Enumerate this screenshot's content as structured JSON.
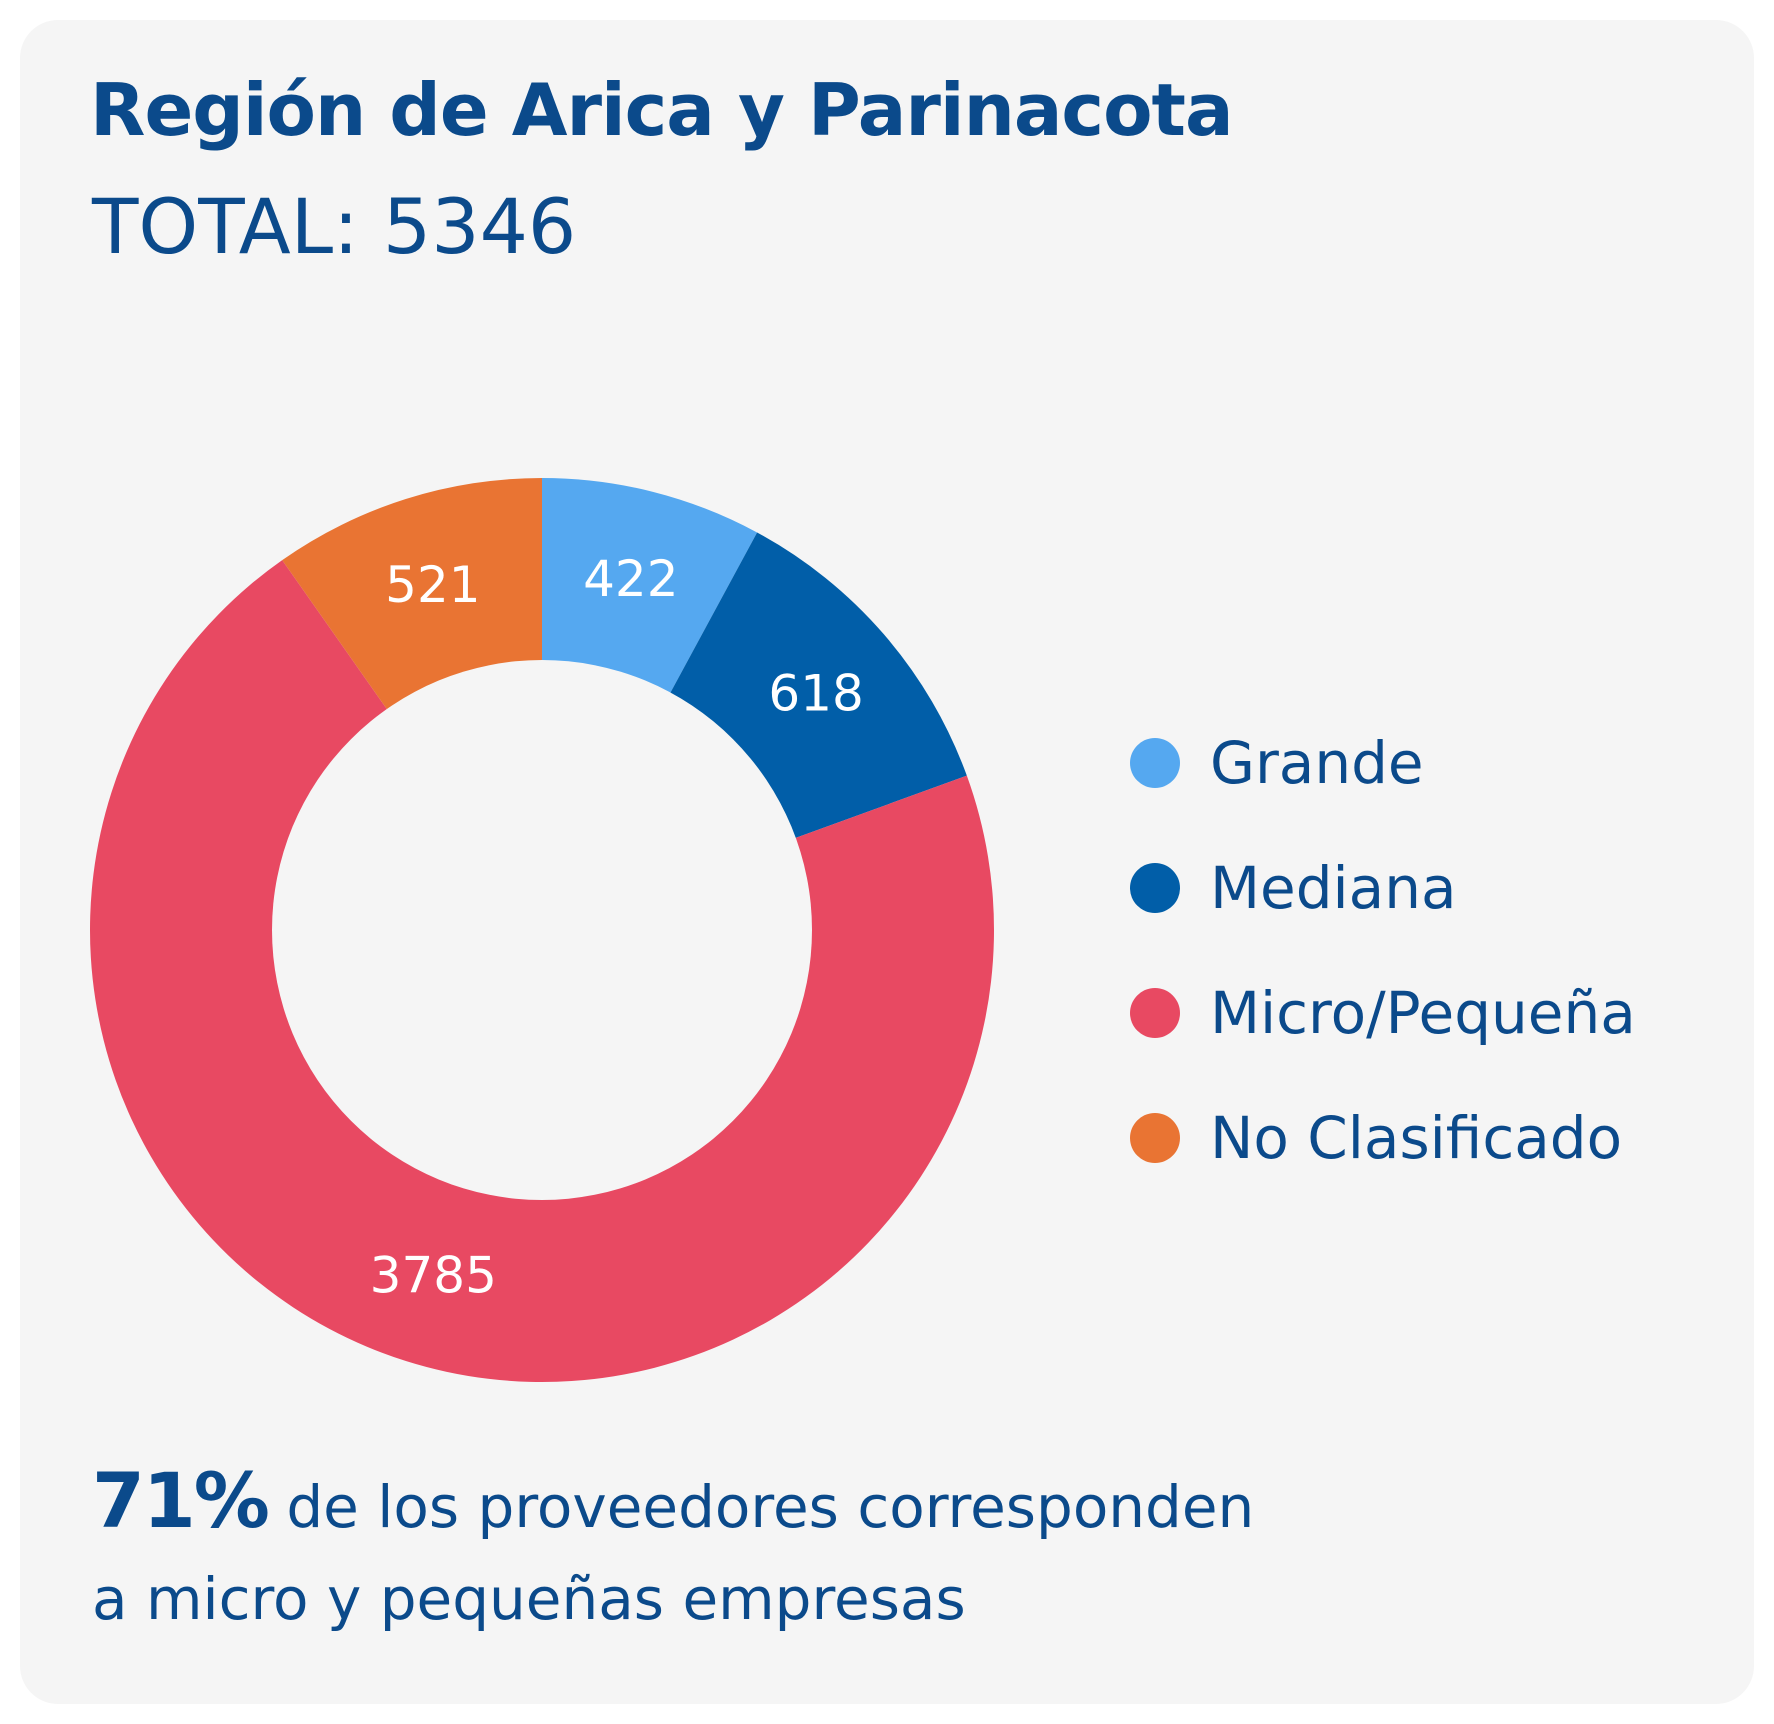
{
  "title": "Región de Arica y Parinacota",
  "total_text": "TOTAL: 5346",
  "chart_data": {
    "type": "pie",
    "title": "Región de Arica y Parinacota",
    "subtitle": "TOTAL: 5346",
    "total": 5346,
    "legend_placement": "right",
    "series": [
      {
        "name": "Grande",
        "value": 422,
        "label": "422",
        "color": "#55a8f0"
      },
      {
        "name": "Mediana",
        "value": 618,
        "label": "618",
        "color": "#015ea8"
      },
      {
        "name": "Micro/Pequeña",
        "value": 3785,
        "label": "3785",
        "color": "#e84962"
      },
      {
        "name": "No Clasificado",
        "value": 521,
        "label": "521",
        "color": "#e97433"
      }
    ]
  },
  "footnote": {
    "highlight": "71%",
    "line1": " de los proveedores corresponden",
    "line2": "a micro y pequeñas empresas"
  }
}
